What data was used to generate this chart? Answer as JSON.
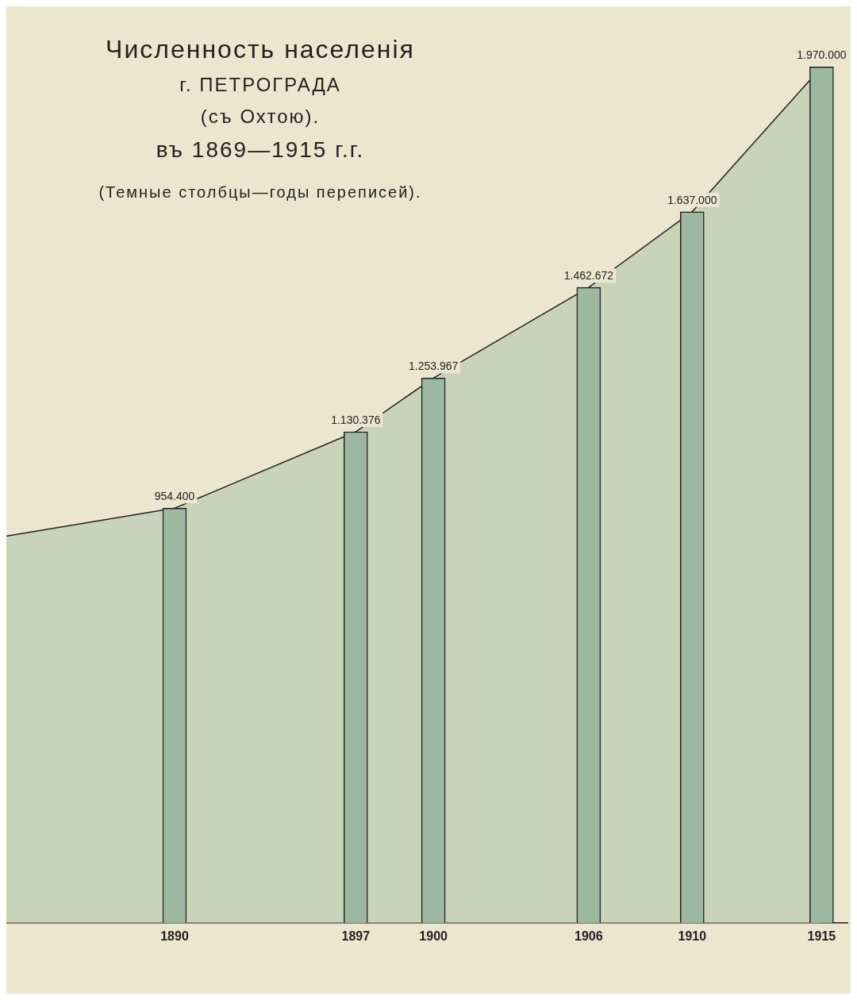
{
  "chart_data": {
    "type": "area",
    "title": "Численность населенія",
    "subtitle": "г. ПЕТРОГРАДА",
    "annotations": [
      "(съ Охтою).",
      "въ 1869—1915 г.г.",
      "(Темные столбцы—годы переписей)."
    ],
    "series": [
      {
        "color": "#c9d3b9",
        "x": [
          1883.5,
          1890,
          1897,
          1900,
          1906,
          1910,
          1915
        ],
        "values": [
          890000,
          954400,
          1130376,
          1253967,
          1462672,
          1637000,
          1970000
        ]
      },
      {
        "type": "bar",
        "color": "#9db8a0",
        "x": [
          1890,
          1897,
          1900,
          1906,
          1910,
          1915
        ],
        "values": [
          954400,
          1130376,
          1253967,
          1462672,
          1637000,
          1970000
        ],
        "value_labels": [
          "954.400",
          "1.130.376",
          "1.253.967",
          "1.462.672",
          "1.637.000",
          "1.970.000"
        ]
      }
    ],
    "xlim": [
      1883.5,
      1916
    ],
    "xticks": [
      1890,
      1897,
      1900,
      1906,
      1910,
      1915
    ],
    "tick_labels": "x",
    "grid": false,
    "legend": false
  }
}
